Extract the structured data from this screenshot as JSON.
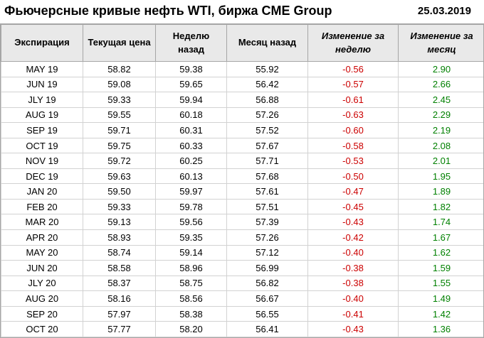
{
  "chart_data": {
    "type": "table",
    "title": "Фьючерсные кривые нефть WTI, биржа CME Group",
    "date": "25.03.2019",
    "columns": [
      "Экспирация",
      "Текущая цена",
      "Неделю назад",
      "Месяц назад",
      "Изменение за неделю",
      "Изменение за месяц"
    ],
    "rows": [
      [
        "MAY 19",
        "58.82",
        "59.38",
        "55.92",
        "-0.56",
        "2.90"
      ],
      [
        "JUN 19",
        "59.08",
        "59.65",
        "56.42",
        "-0.57",
        "2.66"
      ],
      [
        "JLY 19",
        "59.33",
        "59.94",
        "56.88",
        "-0.61",
        "2.45"
      ],
      [
        "AUG 19",
        "59.55",
        "60.18",
        "57.26",
        "-0.63",
        "2.29"
      ],
      [
        "SEP 19",
        "59.71",
        "60.31",
        "57.52",
        "-0.60",
        "2.19"
      ],
      [
        "OCT 19",
        "59.75",
        "60.33",
        "57.67",
        "-0.58",
        "2.08"
      ],
      [
        "NOV 19",
        "59.72",
        "60.25",
        "57.71",
        "-0.53",
        "2.01"
      ],
      [
        "DEC 19",
        "59.63",
        "60.13",
        "57.68",
        "-0.50",
        "1.95"
      ],
      [
        "JAN 20",
        "59.50",
        "59.97",
        "57.61",
        "-0.47",
        "1.89"
      ],
      [
        "FEB 20",
        "59.33",
        "59.78",
        "57.51",
        "-0.45",
        "1.82"
      ],
      [
        "MAR 20",
        "59.13",
        "59.56",
        "57.39",
        "-0.43",
        "1.74"
      ],
      [
        "APR 20",
        "58.93",
        "59.35",
        "57.26",
        "-0.42",
        "1.67"
      ],
      [
        "MAY 20",
        "58.74",
        "59.14",
        "57.12",
        "-0.40",
        "1.62"
      ],
      [
        "JUN 20",
        "58.58",
        "58.96",
        "56.99",
        "-0.38",
        "1.59"
      ],
      [
        "JLY 20",
        "58.37",
        "58.75",
        "56.82",
        "-0.38",
        "1.55"
      ],
      [
        "AUG 20",
        "58.16",
        "58.56",
        "56.67",
        "-0.40",
        "1.49"
      ],
      [
        "SEP 20",
        "57.97",
        "58.38",
        "56.55",
        "-0.41",
        "1.42"
      ],
      [
        "OCT 20",
        "57.77",
        "58.20",
        "56.41",
        "-0.43",
        "1.36"
      ]
    ]
  },
  "colors": {
    "negative": "#cc0000",
    "positive": "#008000",
    "header_bg": "#e9e9e9"
  }
}
